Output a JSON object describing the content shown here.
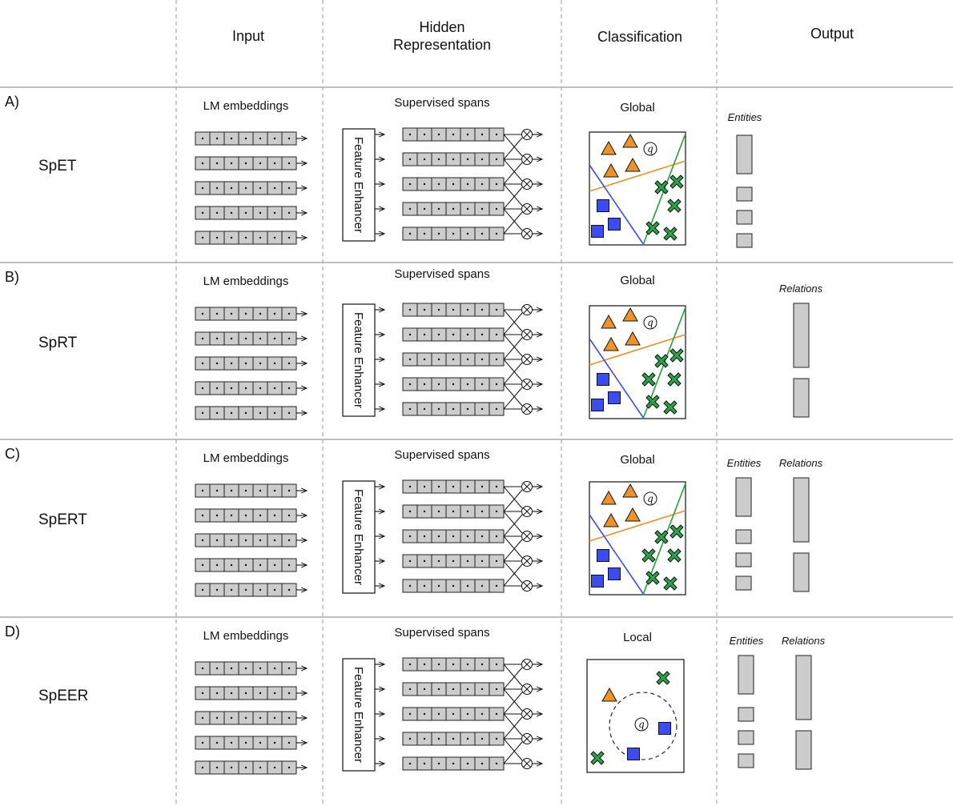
{
  "headers": {
    "input": "Input",
    "hidden_line1": "Hidden",
    "hidden_line2": "Representation",
    "classification": "Classification",
    "output": "Output"
  },
  "rows": [
    {
      "tag": "A)",
      "model": "SpET",
      "input_label": "LM embeddings",
      "hidden_label": "Supervised spans",
      "enhancer_label": "Feature Enhancer",
      "classification_label": "Global",
      "mode": "global",
      "outputs": [
        {
          "label": "Entities",
          "kind": "entities"
        }
      ]
    },
    {
      "tag": "B)",
      "model": "SpRT",
      "input_label": "LM embeddings",
      "hidden_label": "Supervised spans",
      "enhancer_label": "Feature Enhancer",
      "classification_label": "Global",
      "mode": "global",
      "outputs": [
        {
          "label": "Relations",
          "kind": "relations"
        }
      ]
    },
    {
      "tag": "C)",
      "model": "SpERT",
      "input_label": "LM embeddings",
      "hidden_label": "Supervised spans",
      "enhancer_label": "Feature Enhancer",
      "classification_label": "Global",
      "mode": "global",
      "outputs": [
        {
          "label": "Entities",
          "kind": "entities"
        },
        {
          "label": "Relations",
          "kind": "relations"
        }
      ]
    },
    {
      "tag": "D)",
      "model": "SpEER",
      "input_label": "LM embeddings",
      "hidden_label": "Supervised spans",
      "enhancer_label": "Feature Enhancer",
      "classification_label": "Local",
      "mode": "local",
      "outputs": [
        {
          "label": "Entities",
          "kind": "entities"
        },
        {
          "label": "Relations",
          "kind": "relations"
        }
      ]
    }
  ],
  "query_symbol": "q",
  "colors": {
    "cell_fill": "#cccccc",
    "triangle": "#f0922a",
    "square": "#3b4cf0",
    "cross": "#2aa34a",
    "line_orange": "#e8902a",
    "line_blue": "#3b4cf0",
    "line_green": "#22a03a",
    "grid_line": "#aaaaaa"
  }
}
